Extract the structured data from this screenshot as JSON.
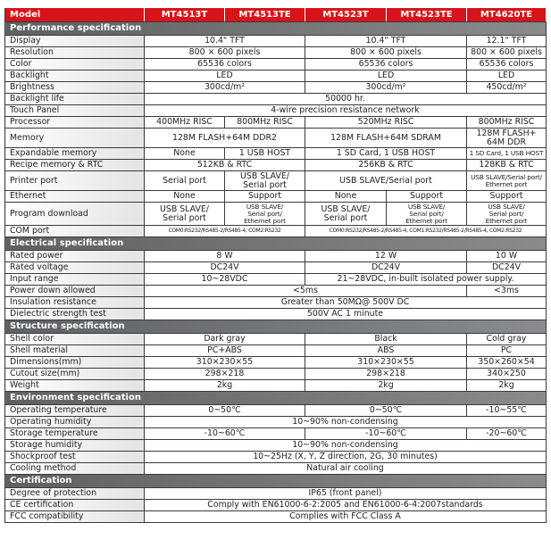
{
  "header": {
    "label": "Model",
    "models": [
      "MT4513T",
      "MT4513TE",
      "MT4523T",
      "MT4523TE",
      "MT4620TE"
    ]
  },
  "colors": {
    "header": "#d7141a",
    "section": "#6d6e71"
  },
  "sections": [
    {
      "title": "Performance  specification",
      "rows": [
        {
          "label": "Display",
          "cells": [
            {
              "t": "10.4\" TFT",
              "s": 2
            },
            {
              "t": "10.4\" TFT",
              "s": 2
            },
            {
              "t": "12.1\" TFT",
              "s": 1
            }
          ]
        },
        {
          "label": "Resolution",
          "cells": [
            {
              "t": "800 × 600 pixels",
              "s": 2
            },
            {
              "t": "800 × 600 pixels",
              "s": 2
            },
            {
              "t": "800 × 600 pixels",
              "s": 1
            }
          ]
        },
        {
          "label": "Color",
          "cells": [
            {
              "t": "65536 colors",
              "s": 2
            },
            {
              "t": "65536 colors",
              "s": 2
            },
            {
              "t": "65536 colors",
              "s": 1
            }
          ]
        },
        {
          "label": "Backlight",
          "cells": [
            {
              "t": "LED",
              "s": 2
            },
            {
              "t": "LED",
              "s": 2
            },
            {
              "t": "LED",
              "s": 1
            }
          ]
        },
        {
          "label": "Brightness",
          "cells": [
            {
              "t": "300cd/m²",
              "s": 2
            },
            {
              "t": "300cd/m²",
              "s": 2
            },
            {
              "t": "450cd/m²",
              "s": 1
            }
          ]
        },
        {
          "label": "Backlight life",
          "cells": [
            {
              "t": "50000 hr.",
              "s": 5
            }
          ]
        },
        {
          "label": "Touch Panel",
          "cells": [
            {
              "t": "4-wire precision resistance network",
              "s": 5
            }
          ]
        },
        {
          "label": "Processor",
          "cells": [
            {
              "t": "400MHz RISC",
              "s": 1
            },
            {
              "t": "800MHz RISC",
              "s": 1
            },
            {
              "t": "520MHz RISC",
              "s": 2
            },
            {
              "t": "800MHz RISC",
              "s": 1
            }
          ]
        },
        {
          "label": "Memory",
          "cells": [
            {
              "t": "128M FLASH+64M DDR2",
              "s": 2
            },
            {
              "t": "128M FLASH+64M SDRAM",
              "s": 2
            },
            {
              "t": "128M FLASH+\n64M DDR",
              "s": 1
            }
          ]
        },
        {
          "label": "Expandable memory",
          "cells": [
            {
              "t": "None",
              "s": 1
            },
            {
              "t": "1 USB  HOST",
              "s": 1
            },
            {
              "t": "1 SD Card, 1 USB  HOST",
              "s": 2
            },
            {
              "t": "1 SD Card, 1 USB HOST",
              "s": 1
            }
          ]
        },
        {
          "label": "Recipe memory & RTC",
          "cells": [
            {
              "t": "512KB & RTC",
              "s": 2
            },
            {
              "t": "256KB & RTC",
              "s": 2
            },
            {
              "t": "128KB & RTC",
              "s": 1
            }
          ]
        },
        {
          "label": "Printer port",
          "cells": [
            {
              "t": "Serial port",
              "s": 1
            },
            {
              "t": "USB SLAVE/\nSerial port",
              "s": 1
            },
            {
              "t": "USB SLAVE/Serial port",
              "s": 2
            },
            {
              "t": "USB SLAVE/Serial port/\nEthernet port",
              "s": 1
            }
          ]
        },
        {
          "label": "Ethernet",
          "cells": [
            {
              "t": "None",
              "s": 1
            },
            {
              "t": "Support",
              "s": 1
            },
            {
              "t": "None",
              "s": 1
            },
            {
              "t": "Support",
              "s": 1
            },
            {
              "t": "Support",
              "s": 1
            }
          ]
        },
        {
          "label": "Program download",
          "cells": [
            {
              "t": "USB SLAVE/\nSerial port",
              "s": 1
            },
            {
              "t": "USB SLAVE/\nSerial port/\nEthernet port",
              "s": 1
            },
            {
              "t": "USB SLAVE/\nSerial port",
              "s": 1
            },
            {
              "t": "USB SLAVE/\nSerial port/\nEthernet port",
              "s": 1
            },
            {
              "t": "USB SLAVE/\nSerial port/\nEthernet port",
              "s": 1
            }
          ]
        },
        {
          "label": "COM port",
          "cells": [
            {
              "t": "COM0:RS232/RS485-2/RS485-4, COM2:RS232",
              "s": 2
            },
            {
              "t": "COM0:RS232/RS485-2/RS485-4,  COM1:RS232/RS485-2/RS485-4,  COM2:RS232",
              "s": 3
            }
          ]
        }
      ]
    },
    {
      "title": "Electrical specification",
      "rows": [
        {
          "label": "Rated power",
          "cells": [
            {
              "t": "8 W",
              "s": 2
            },
            {
              "t": "12 W",
              "s": 2
            },
            {
              "t": "10 W",
              "s": 1
            }
          ]
        },
        {
          "label": "Rated voltage",
          "cells": [
            {
              "t": "DC24V",
              "s": 2
            },
            {
              "t": "DC24V",
              "s": 2
            },
            {
              "t": "DC24V",
              "s": 1
            }
          ]
        },
        {
          "label": "Input range",
          "cells": [
            {
              "t": "10~28VDC",
              "s": 2
            },
            {
              "t": "21~28VDC, in-built isolated power supply.",
              "s": 3
            }
          ]
        },
        {
          "label": "Power down allowed",
          "cells": [
            {
              "t": "<5ms",
              "s": 4
            },
            {
              "t": "<3ms",
              "s": 1
            }
          ]
        },
        {
          "label": "Insulation resistance",
          "cells": [
            {
              "t": "Greater than 50MΩ@ 500V DC",
              "s": 5
            }
          ]
        },
        {
          "label": "Dielectric strength test",
          "cells": [
            {
              "t": "500V AC 1 minute",
              "s": 5
            }
          ]
        }
      ]
    },
    {
      "title": "Structure specification",
      "rows": [
        {
          "label": "Shell color",
          "cells": [
            {
              "t": "Dark  gray",
              "s": 2
            },
            {
              "t": "Black",
              "s": 2
            },
            {
              "t": "Cold gray",
              "s": 1
            }
          ]
        },
        {
          "label": "Shell material",
          "cells": [
            {
              "t": "PC+ABS",
              "s": 2
            },
            {
              "t": "ABS",
              "s": 2
            },
            {
              "t": "PC",
              "s": 1
            }
          ]
        },
        {
          "label": "Dimensions(mm)",
          "cells": [
            {
              "t": "310×230×55",
              "s": 2
            },
            {
              "t": "310×230×55",
              "s": 2
            },
            {
              "t": "350×260×54",
              "s": 1
            }
          ]
        },
        {
          "label": "Cutout size(mm)",
          "cells": [
            {
              "t": "298×218",
              "s": 2
            },
            {
              "t": "298×218",
              "s": 2
            },
            {
              "t": "340×250",
              "s": 1
            }
          ]
        },
        {
          "label": "Weight",
          "cells": [
            {
              "t": "2kg",
              "s": 2
            },
            {
              "t": "2kg",
              "s": 2
            },
            {
              "t": "2kg",
              "s": 1
            }
          ]
        }
      ]
    },
    {
      "title": "Environment specification",
      "rows": [
        {
          "label": "Operating temperature",
          "cells": [
            {
              "t": "0~50℃",
              "s": 2
            },
            {
              "t": "0~50℃",
              "s": 2
            },
            {
              "t": "-10~55℃",
              "s": 1
            }
          ]
        },
        {
          "label": "Operating humidity",
          "cells": [
            {
              "t": "10~90% non-condensing",
              "s": 5
            }
          ]
        },
        {
          "label": "Storage temperature",
          "cells": [
            {
              "t": "-10~60℃",
              "s": 2
            },
            {
              "t": "-10~60℃",
              "s": 2
            },
            {
              "t": "-20~60℃",
              "s": 1
            }
          ]
        },
        {
          "label": "Storage humidity",
          "cells": [
            {
              "t": "10~90% non-condensing",
              "s": 5
            }
          ]
        },
        {
          "label": "Shockproof test",
          "cells": [
            {
              "t": "10~25Hz (X, Y, Z direction, 2G, 30 minutes)",
              "s": 5
            }
          ]
        },
        {
          "label": "Cooling method",
          "cells": [
            {
              "t": "Natural air cooling",
              "s": 5
            }
          ]
        }
      ]
    },
    {
      "title": "Certification",
      "rows": [
        {
          "label": "Degree of protection",
          "cells": [
            {
              "t": "IP65 (front panel)",
              "s": 5
            }
          ]
        },
        {
          "label": "CE certification",
          "cells": [
            {
              "t": "Comply with EN61000-6-2:2005 and EN61000-6-4:2007standards",
              "s": 5
            }
          ]
        },
        {
          "label": "FCC compatibility",
          "cells": [
            {
              "t": "Complies with FCC Class A",
              "s": 5
            }
          ]
        }
      ]
    }
  ]
}
